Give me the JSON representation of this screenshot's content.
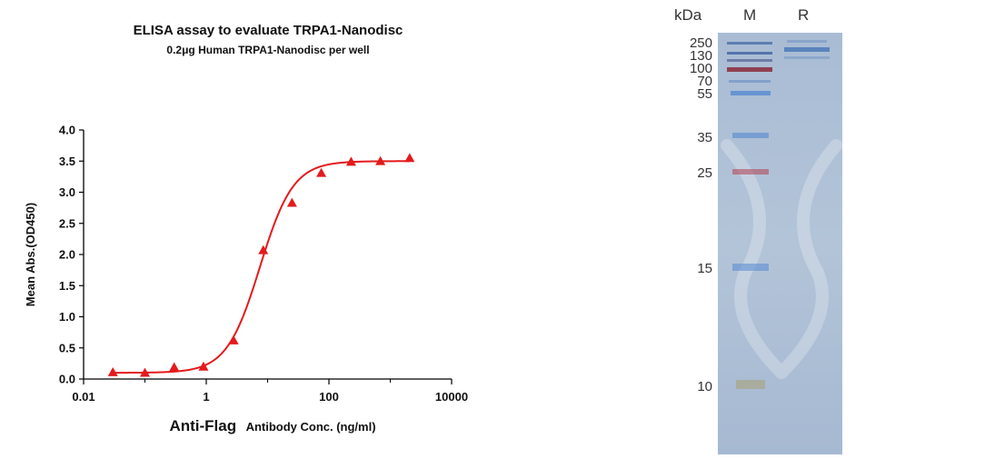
{
  "chart_data": {
    "type": "scatter",
    "title": "ELISA assay to evaluate TRPA1-Nanodisc",
    "subtitle": "0.2μg Human TRPA1-Nanodisc per well",
    "xlabel_bold": "Anti-Flag",
    "xlabel_rest": "Antibody Conc. (ng/ml)",
    "ylabel": "Mean Abs.(OD450)",
    "x_scale": "log",
    "xlim": [
      0.01,
      10000
    ],
    "ylim": [
      0,
      4.0
    ],
    "x_ticks": [
      0.01,
      1,
      100,
      10000
    ],
    "x_tick_labels": [
      "0.01",
      "1",
      "100",
      "10000"
    ],
    "y_ticks": [
      0,
      0.5,
      1.0,
      1.5,
      2.0,
      2.5,
      3.0,
      3.5,
      4.0
    ],
    "y_tick_labels": [
      "0.0",
      "0.5",
      "1.0",
      "1.5",
      "2.0",
      "2.5",
      "3.0",
      "3.5",
      "4.0"
    ],
    "series": [
      {
        "marker": "triangle",
        "color": "#e41a1c",
        "x": [
          0.03,
          0.1,
          0.3,
          0.9,
          2.8,
          8.5,
          25,
          75,
          230,
          690,
          2070
        ],
        "y": [
          0.11,
          0.1,
          0.19,
          0.2,
          0.62,
          2.07,
          2.83,
          3.31,
          3.49,
          3.5,
          3.55
        ]
      }
    ],
    "fit_curve": {
      "model": "4PL",
      "bottom": 0.1,
      "top": 3.5,
      "ec50": 7.5,
      "hill": 1.6,
      "color": "#e41a1c"
    }
  },
  "gel": {
    "unit_label": "kDa",
    "lane_labels": [
      "M",
      "R"
    ],
    "markers": [
      "250",
      "130",
      "100",
      "70",
      "55",
      "35",
      "25",
      "15",
      "10"
    ]
  }
}
